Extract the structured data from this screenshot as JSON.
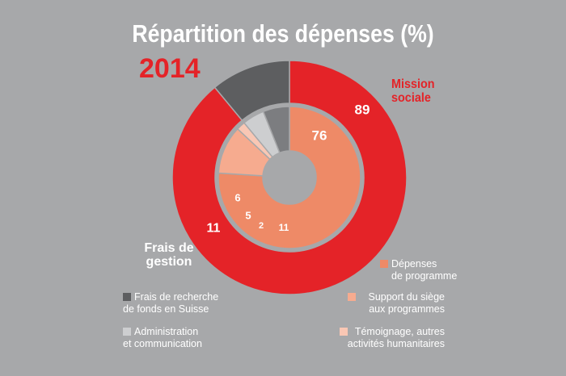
{
  "chart_data": {
    "type": "pie",
    "title": "Répartition des dépenses (%)",
    "year": "2014",
    "outer_ring": [
      {
        "name": "Mission sociale",
        "value": 89,
        "color": "#e42328"
      },
      {
        "name": "Frais de gestion",
        "value": 11,
        "color": "#5d5e60"
      }
    ],
    "inner_ring": [
      {
        "name": "Dépenses de programme",
        "value": 76,
        "color": "#ee8a67"
      },
      {
        "name": "Support du siège aux programmes",
        "value": 11,
        "color": "#f6ab8f"
      },
      {
        "name": "Témoignage, autres activités humanitaires",
        "value": 2,
        "color": "#f9c7b4"
      },
      {
        "name": "Administration et communication",
        "value": 5,
        "color": "#cdced0"
      },
      {
        "name": "Frais de recherche de fonds en Suisse",
        "value": 6,
        "color": "#7c7d80"
      }
    ],
    "outer_labels": {
      "mission": [
        "Mission",
        "sociale"
      ],
      "frais": [
        "Frais de",
        "gestion"
      ]
    },
    "legend": [
      {
        "key": "frais_recherche",
        "lines": [
          "Frais de recherche",
          "de fonds en Suisse"
        ],
        "color": "#5d5e60"
      },
      {
        "key": "administration",
        "lines": [
          "Administration",
          "et communication"
        ],
        "color": "#cdced0"
      },
      {
        "key": "depenses",
        "lines": [
          "Dépenses",
          "de programme"
        ],
        "color": "#ee8a67"
      },
      {
        "key": "support",
        "lines": [
          "Support du siège",
          "aux programmes"
        ],
        "color": "#f6ab8f"
      },
      {
        "key": "temoignage",
        "lines": [
          "Témoignage, autres",
          "activités humanitaires"
        ],
        "color": "#f9c7b4"
      }
    ]
  }
}
